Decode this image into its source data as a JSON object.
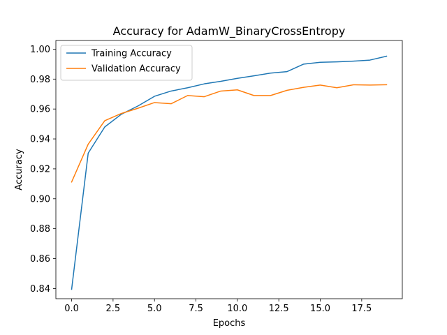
{
  "chart_data": {
    "type": "line",
    "title": "Accuracy for AdamW_BinaryCrossEntropy",
    "xlabel": "Epochs",
    "ylabel": "Accuracy",
    "xlim": [
      -0.95,
      19.95
    ],
    "ylim": [
      0.8332,
      1.0058
    ],
    "xticks": [
      0.0,
      2.5,
      5.0,
      7.5,
      10.0,
      12.5,
      15.0,
      17.5
    ],
    "xtick_labels": [
      "0.0",
      "2.5",
      "5.0",
      "7.5",
      "10.0",
      "12.5",
      "15.0",
      "17.5"
    ],
    "yticks": [
      0.84,
      0.86,
      0.88,
      0.9,
      0.92,
      0.94,
      0.96,
      0.98,
      1.0
    ],
    "ytick_labels": [
      "0.84",
      "0.86",
      "0.88",
      "0.90",
      "0.92",
      "0.94",
      "0.96",
      "0.98",
      "1.00"
    ],
    "grid": false,
    "legend_position": "top-left",
    "x": [
      0,
      1,
      2,
      3,
      4,
      5,
      6,
      7,
      8,
      9,
      10,
      11,
      12,
      13,
      14,
      15,
      16,
      17,
      18,
      19
    ],
    "series": [
      {
        "name": "Training Accuracy",
        "color": "#1f77b4",
        "values": [
          0.8395,
          0.9305,
          0.948,
          0.9565,
          0.962,
          0.9685,
          0.972,
          0.9742,
          0.9768,
          0.9785,
          0.9805,
          0.9822,
          0.984,
          0.985,
          0.99,
          0.9912,
          0.9915,
          0.992,
          0.9927,
          0.9953
        ]
      },
      {
        "name": "Validation Accuracy",
        "color": "#ff7f0e",
        "values": [
          0.9112,
          0.9365,
          0.9522,
          0.957,
          0.9605,
          0.9643,
          0.9635,
          0.969,
          0.9682,
          0.972,
          0.9728,
          0.969,
          0.969,
          0.9725,
          0.9745,
          0.976,
          0.9742,
          0.9762,
          0.976,
          0.9762
        ]
      }
    ]
  }
}
